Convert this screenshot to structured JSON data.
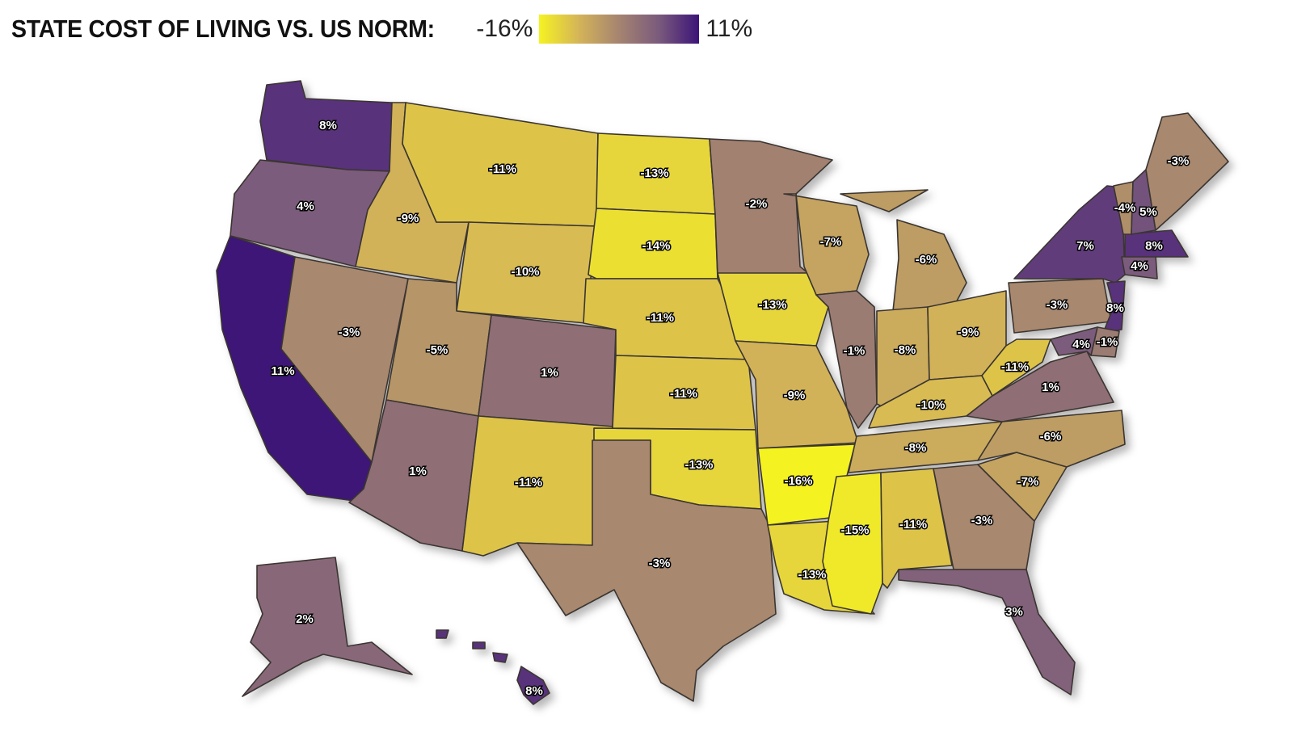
{
  "title": "STATE COST OF LIVING VS. US NORM:",
  "legend": {
    "min_label": "-16%",
    "max_label": "11%",
    "min_value": -16,
    "max_value": 11,
    "colors": [
      "#f5f222",
      "#d4b458",
      "#a58470",
      "#7a5a7c",
      "#3c1478"
    ]
  },
  "states": [
    {
      "id": "WA",
      "label": "8%",
      "value": 8
    },
    {
      "id": "OR",
      "label": "4%",
      "value": 4
    },
    {
      "id": "CA",
      "label": "11%",
      "value": 11
    },
    {
      "id": "ID",
      "label": "-9%",
      "value": -9
    },
    {
      "id": "NV",
      "label": "-3%",
      "value": -3
    },
    {
      "id": "MT",
      "label": "-11%",
      "value": -11
    },
    {
      "id": "WY",
      "label": "-10%",
      "value": -10
    },
    {
      "id": "UT",
      "label": "-5%",
      "value": -5
    },
    {
      "id": "AZ",
      "label": "1%",
      "value": 1
    },
    {
      "id": "CO",
      "label": "1%",
      "value": 1
    },
    {
      "id": "NM",
      "label": "-11%",
      "value": -11
    },
    {
      "id": "ND",
      "label": "-13%",
      "value": -13
    },
    {
      "id": "SD",
      "label": "-14%",
      "value": -14
    },
    {
      "id": "NE",
      "label": "-11%",
      "value": -11
    },
    {
      "id": "KS",
      "label": "-11%",
      "value": -11
    },
    {
      "id": "OK",
      "label": "-13%",
      "value": -13
    },
    {
      "id": "TX",
      "label": "-3%",
      "value": -3
    },
    {
      "id": "MN",
      "label": "-2%",
      "value": -2
    },
    {
      "id": "IA",
      "label": "-13%",
      "value": -13
    },
    {
      "id": "MO",
      "label": "-9%",
      "value": -9
    },
    {
      "id": "AR",
      "label": "-16%",
      "value": -16
    },
    {
      "id": "LA",
      "label": "-13%",
      "value": -13
    },
    {
      "id": "WI",
      "label": "-7%",
      "value": -7
    },
    {
      "id": "IL",
      "label": "-1%",
      "value": -1
    },
    {
      "id": "MI",
      "label": "-6%",
      "value": -6
    },
    {
      "id": "IN",
      "label": "-8%",
      "value": -8
    },
    {
      "id": "OH",
      "label": "-9%",
      "value": -9
    },
    {
      "id": "KY",
      "label": "-10%",
      "value": -10
    },
    {
      "id": "TN",
      "label": "-8%",
      "value": -8
    },
    {
      "id": "MS",
      "label": "-15%",
      "value": -15
    },
    {
      "id": "AL",
      "label": "-11%",
      "value": -11
    },
    {
      "id": "GA",
      "label": "-3%",
      "value": -3
    },
    {
      "id": "FL",
      "label": "3%",
      "value": 3
    },
    {
      "id": "SC",
      "label": "-7%",
      "value": -7
    },
    {
      "id": "NC",
      "label": "-6%",
      "value": -6
    },
    {
      "id": "VA",
      "label": "1%",
      "value": 1
    },
    {
      "id": "WV",
      "label": "-11%",
      "value": -11
    },
    {
      "id": "PA",
      "label": "-3%",
      "value": -3
    },
    {
      "id": "NY",
      "label": "7%",
      "value": 7
    },
    {
      "id": "NJ",
      "label": "8%",
      "value": 8
    },
    {
      "id": "DE",
      "label": "-1%",
      "value": -1
    },
    {
      "id": "MD",
      "label": "4%",
      "value": 4
    },
    {
      "id": "CT",
      "label": "4%",
      "value": 4
    },
    {
      "id": "MA",
      "label": "8%",
      "value": 8
    },
    {
      "id": "VT",
      "label": "-4%",
      "value": -4
    },
    {
      "id": "NH",
      "label": "5%",
      "value": 5
    },
    {
      "id": "ME",
      "label": "-3%",
      "value": -3
    },
    {
      "id": "AK",
      "label": "2%",
      "value": 2
    },
    {
      "id": "HI",
      "label": "8%",
      "value": 8
    }
  ]
}
